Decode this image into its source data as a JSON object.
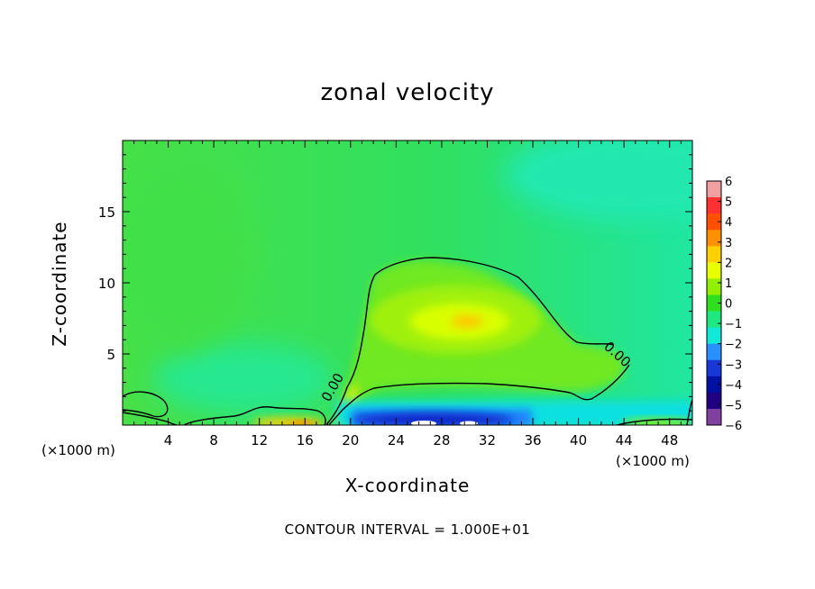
{
  "chart_data": {
    "type": "heatmap",
    "title": "zonal velocity",
    "xlabel": "X-coordinate",
    "ylabel": "Z-coordinate",
    "x_unit_label": "(×1000 m)",
    "x_ticks": [
      4,
      8,
      12,
      16,
      20,
      24,
      28,
      32,
      36,
      40,
      44,
      48
    ],
    "y_ticks": [
      5,
      10,
      15
    ],
    "xlim": [
      0,
      50
    ],
    "ylim": [
      0,
      20
    ],
    "colorbar": {
      "levels": [
        6,
        5,
        4,
        3,
        2,
        1,
        0,
        -1,
        -2,
        -3,
        -4,
        -5,
        -6
      ],
      "colors": [
        "#f0a0a0",
        "#ff3030",
        "#ff5000",
        "#ff9000",
        "#ffd000",
        "#e8ff00",
        "#90f000",
        "#30e020",
        "#20e880",
        "#10e8d8",
        "#2890ff",
        "#1838d8",
        "#0010a0",
        "#200080",
        "#8040a0"
      ]
    },
    "contour_label": "0.00",
    "contour_interval_text": "CONTOUR INTERVAL = 1.000E+01",
    "features": [
      {
        "description": "positive jet core",
        "x": 30,
        "z": 7.5,
        "value": 2.5
      },
      {
        "description": "negative near-surface jet",
        "x": 28,
        "z": 0.5,
        "value": -5
      }
    ]
  }
}
